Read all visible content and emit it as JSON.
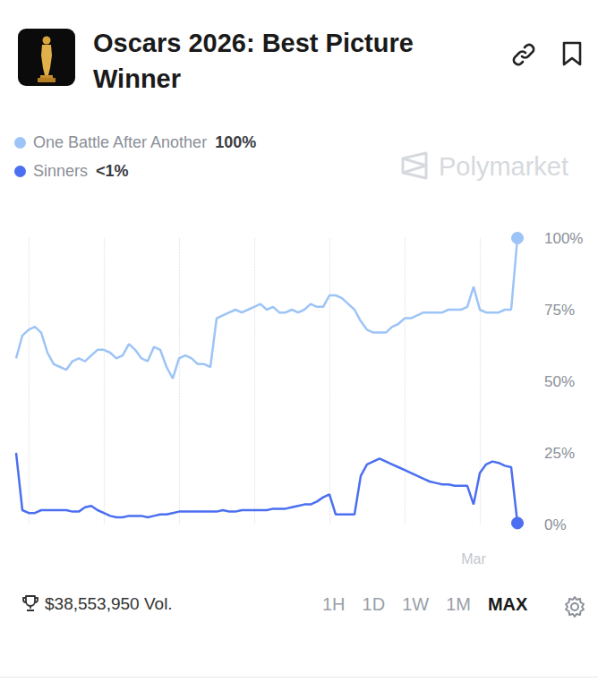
{
  "chart_data": {
    "type": "line",
    "title": "Oscars 2026: Best Picture Winner",
    "watermark": "Polymarket",
    "volume": "$38,553,950 Vol.",
    "ranges": [
      "1H",
      "1D",
      "1W",
      "1M",
      "MAX"
    ],
    "selected_range": "MAX",
    "legend": "top-left",
    "grid": true,
    "marker": "circle",
    "categories": [
      null,
      null,
      null,
      null,
      null,
      null,
      null,
      null,
      null,
      null,
      null,
      null,
      null,
      null,
      null,
      null,
      null,
      null,
      null,
      null,
      null,
      null,
      null,
      null,
      null,
      null,
      null,
      null,
      null,
      null,
      null,
      null,
      null,
      null,
      null,
      null,
      null,
      null,
      null,
      null,
      null,
      null,
      null,
      null,
      null,
      null,
      null,
      null,
      null,
      null,
      null,
      null,
      null,
      null,
      null,
      null,
      null,
      null,
      null,
      null,
      null,
      null,
      null,
      null,
      null,
      null,
      null,
      null,
      null,
      null,
      null,
      null,
      null,
      "Mar",
      null,
      null,
      null,
      null,
      null,
      null,
      null
    ],
    "series": [
      {
        "name": "One Battle After Another",
        "color": "#9dc4f6",
        "current_label": "100%",
        "values": [
          58,
          66,
          68,
          69,
          67,
          60,
          56,
          55,
          54,
          57,
          58,
          57,
          59,
          61,
          61,
          60,
          58,
          59,
          63,
          61,
          58,
          57,
          62,
          61,
          55,
          51,
          58,
          59,
          58,
          56,
          56,
          55,
          72,
          73,
          74,
          75,
          74,
          75,
          76,
          77,
          75,
          76,
          74,
          74,
          75,
          74,
          75,
          77,
          76,
          76,
          80,
          80,
          79,
          77,
          75,
          71,
          68,
          67,
          67,
          67,
          69,
          70,
          72,
          72,
          73,
          74,
          74,
          74,
          74,
          75,
          75,
          75,
          76,
          83,
          75,
          74,
          74,
          74,
          75,
          75,
          100
        ]
      },
      {
        "name": "Sinners",
        "color": "#4b6ff0",
        "current_label": "<1%",
        "values": [
          25,
          5,
          4,
          4,
          5,
          5,
          5,
          5,
          5,
          4.5,
          4.5,
          6,
          6.5,
          5,
          4,
          3,
          2.5,
          2.5,
          3,
          3,
          3,
          2.5,
          3,
          3.5,
          3.5,
          4,
          4.5,
          4.5,
          4.5,
          4.5,
          4.5,
          4.5,
          4.5,
          5,
          4.5,
          4.5,
          5,
          5,
          5,
          5,
          5,
          5.5,
          5.5,
          5.5,
          6,
          6.5,
          7,
          7,
          8,
          9.5,
          10.5,
          3.5,
          3.5,
          3.5,
          3.5,
          17,
          21,
          22,
          23,
          22,
          21,
          20,
          19,
          18,
          17,
          16,
          15,
          14.5,
          14,
          14,
          13.5,
          13.5,
          13.5,
          7,
          18,
          21,
          22,
          21.5,
          20.5,
          20,
          0.5
        ]
      }
    ],
    "ylim": [
      0,
      100
    ],
    "yticks": [
      {
        "value": 0,
        "label": "0%"
      },
      {
        "value": 25,
        "label": "25%"
      },
      {
        "value": 50,
        "label": "50%"
      },
      {
        "value": 75,
        "label": "75%"
      },
      {
        "value": 100,
        "label": "100%"
      }
    ]
  }
}
